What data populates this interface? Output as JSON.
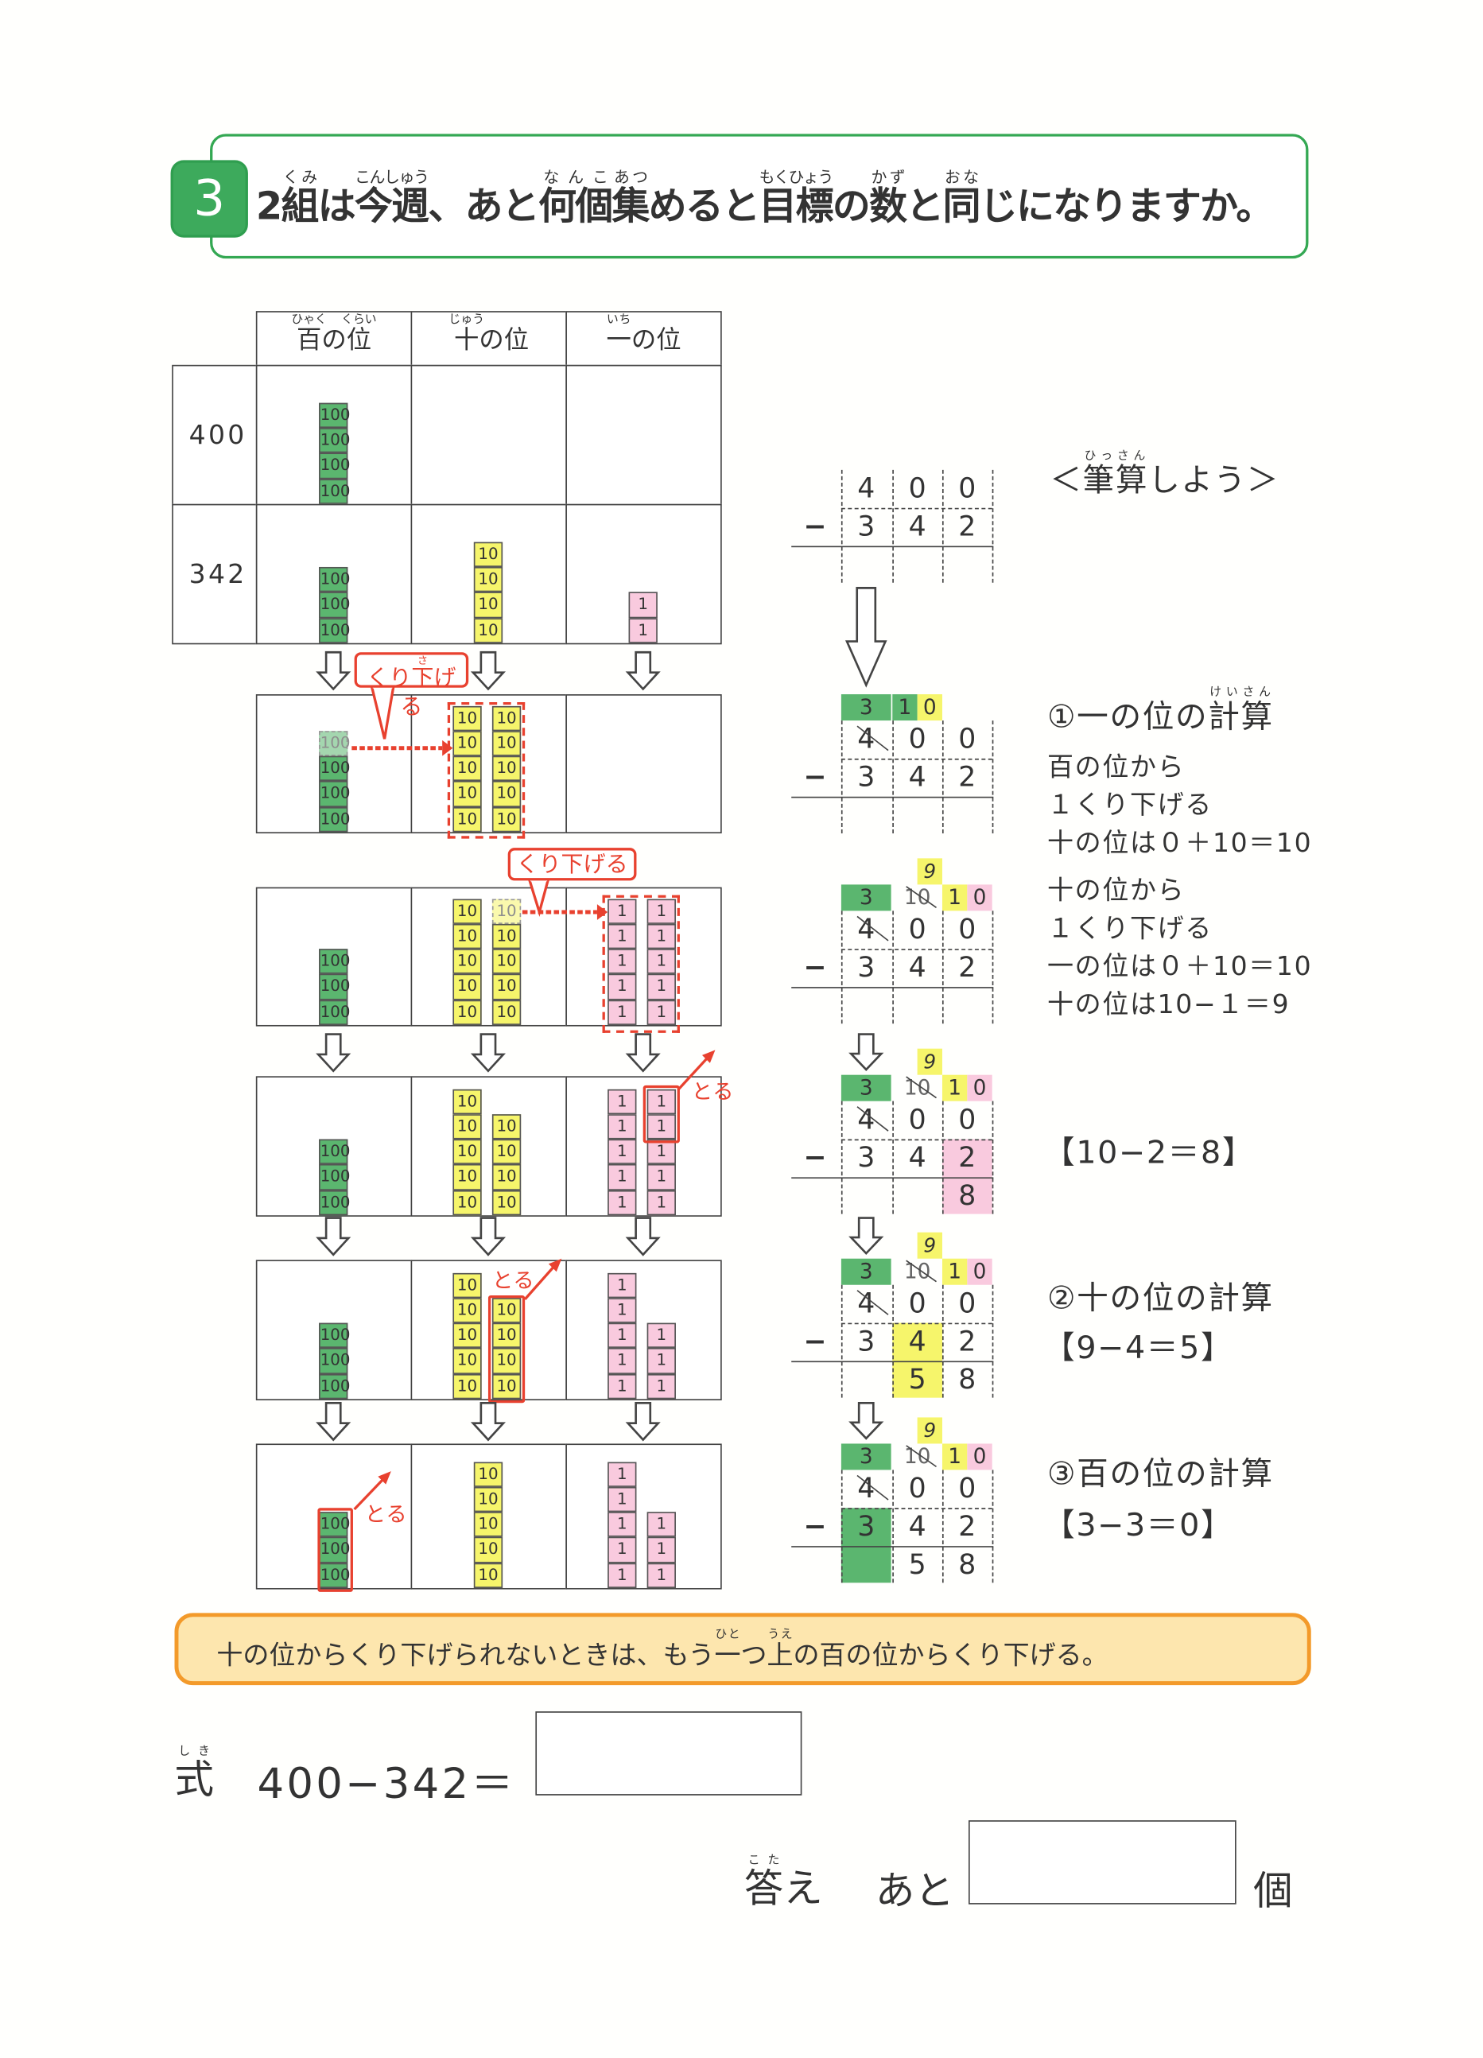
{
  "question": {
    "number": "3",
    "text": [
      {
        "t": "2"
      },
      {
        "t": "組",
        "r": "くみ"
      },
      {
        "t": "は"
      },
      {
        "t": "今週",
        "r": "こんしゅう"
      },
      {
        "t": "、あと"
      },
      {
        "t": "何個",
        "r": "なんこ"
      },
      {
        "t": "集",
        "r": "あつ"
      },
      {
        "t": "めると"
      },
      {
        "t": "目標",
        "r": "もくひょう"
      },
      {
        "t": "の"
      },
      {
        "t": "数",
        "r": "かず"
      },
      {
        "t": "と"
      },
      {
        "t": "同",
        "r": "おな"
      },
      {
        "t": "じになりますか。"
      }
    ]
  },
  "place_table": {
    "headers": [
      [
        {
          "t": "百",
          "r": "ひゃく"
        },
        {
          "t": "の"
        },
        {
          "t": "位",
          "r": "くらい"
        }
      ],
      [
        {
          "t": "十",
          "r": "じゅう"
        },
        {
          "t": "の位"
        }
      ],
      [
        {
          "t": "一",
          "r": "いち"
        },
        {
          "t": "の位"
        }
      ]
    ],
    "row_labels": [
      "400",
      "342"
    ]
  },
  "block_labels": {
    "h": "100",
    "t": "10",
    "o": "1"
  },
  "block_boxes": [
    {
      "name": "row-400",
      "h": [
        4
      ],
      "t": [],
      "o": []
    },
    {
      "name": "row-342",
      "h": [
        3
      ],
      "t": [
        4
      ],
      "o": [
        2
      ]
    },
    {
      "name": "step-1",
      "h": [
        4
      ],
      "h_faded_top": true,
      "t": [
        5,
        5
      ],
      "o": []
    },
    {
      "name": "step-2",
      "h": [
        3
      ],
      "t": [
        5,
        5
      ],
      "t_faded_top": true,
      "o": [
        5,
        5
      ]
    },
    {
      "name": "step-3",
      "h": [
        3
      ],
      "t": [
        5,
        4
      ],
      "o": [
        5,
        5
      ]
    },
    {
      "name": "step-4",
      "h": [
        3
      ],
      "t": [
        5,
        4
      ],
      "o": [
        5,
        3
      ]
    },
    {
      "name": "step-5",
      "h": [
        3
      ],
      "t": [
        5
      ],
      "o": [
        5,
        3
      ]
    }
  ],
  "callouts": {
    "borrow_1": [
      {
        "t": "くり"
      },
      {
        "t": "下",
        "r": "さ"
      },
      {
        "t": "げる"
      }
    ],
    "borrow_2": "くり下げる",
    "take": "とる"
  },
  "computations": [
    {
      "minuend": [
        "4",
        "0",
        "0"
      ],
      "subtrahend": [
        "3",
        "4",
        "2"
      ],
      "answer": [
        "",
        "",
        ""
      ],
      "minus": "−"
    },
    {
      "carry": [
        {
          "text": "3",
          "col": 0,
          "bg": "green"
        },
        {
          "text": "1",
          "col": 1,
          "half": "left",
          "bg": "green"
        },
        {
          "text": "0",
          "col": 1,
          "half": "right",
          "bg": "yellow"
        }
      ],
      "strike_h": true,
      "minuend": [
        "4",
        "0",
        "0"
      ],
      "subtrahend": [
        "3",
        "4",
        "2"
      ],
      "answer": [
        "",
        "",
        ""
      ],
      "minus": "−"
    },
    {
      "nine": "9",
      "carry": [
        {
          "text": "3",
          "col": 0,
          "bg": "green"
        },
        {
          "text": "10",
          "col": 1,
          "strike": true
        },
        {
          "text": "1",
          "col": 2,
          "half": "left",
          "bg": "yellow"
        },
        {
          "text": "0",
          "col": 2,
          "half": "right",
          "bg": "pink"
        }
      ],
      "strike_h": true,
      "minuend": [
        "4",
        "0",
        "0"
      ],
      "subtrahend": [
        "3",
        "4",
        "2"
      ],
      "answer": [
        "",
        "",
        ""
      ],
      "minus": "−"
    },
    {
      "nine": "9",
      "carry": [
        {
          "text": "3",
          "col": 0,
          "bg": "green"
        },
        {
          "text": "10",
          "col": 1,
          "strike": true
        },
        {
          "text": "1",
          "col": 2,
          "half": "left",
          "bg": "yellow"
        },
        {
          "text": "0",
          "col": 2,
          "half": "right",
          "bg": "pink"
        }
      ],
      "strike_h": true,
      "minuend": [
        "4",
        "0",
        "0"
      ],
      "subtrahend": [
        "3",
        "4",
        "2"
      ],
      "answer": [
        "",
        "",
        "8"
      ],
      "hl": {
        "col": 2,
        "bg": "pink"
      },
      "minus": "−"
    },
    {
      "nine": "9",
      "carry": [
        {
          "text": "3",
          "col": 0,
          "bg": "green"
        },
        {
          "text": "10",
          "col": 1,
          "strike": true
        },
        {
          "text": "1",
          "col": 2,
          "half": "left",
          "bg": "yellow"
        },
        {
          "text": "0",
          "col": 2,
          "half": "right",
          "bg": "pink"
        }
      ],
      "strike_h": true,
      "minuend": [
        "4",
        "0",
        "0"
      ],
      "subtrahend": [
        "3",
        "4",
        "2"
      ],
      "answer": [
        "",
        "5",
        "8"
      ],
      "hl": {
        "col": 1,
        "bg": "yellow"
      },
      "minus": "−"
    },
    {
      "nine": "9",
      "carry": [
        {
          "text": "3",
          "col": 0,
          "bg": "green"
        },
        {
          "text": "10",
          "col": 1,
          "strike": true
        },
        {
          "text": "1",
          "col": 2,
          "half": "left",
          "bg": "yellow"
        },
        {
          "text": "0",
          "col": 2,
          "half": "right",
          "bg": "pink"
        }
      ],
      "strike_h": true,
      "minuend": [
        "4",
        "0",
        "0"
      ],
      "subtrahend": [
        "3",
        "4",
        "2"
      ],
      "answer": [
        "",
        "5",
        "8"
      ],
      "hl": {
        "col": 0,
        "bg": "green"
      },
      "minus": "−"
    }
  ],
  "explanation": {
    "title": [
      {
        "t": "＜"
      },
      {
        "t": "筆算",
        "r": "ひっさん"
      },
      {
        "t": "しよう＞"
      }
    ],
    "step1_title": [
      {
        "t": "①一の位の"
      },
      {
        "t": "計算",
        "r": "けいさん"
      }
    ],
    "step1_lines": [
      "百の位から",
      "１くり下げる",
      "十の位は０＋10＝10",
      "十の位から",
      "１くり下げる",
      "一の位は０＋10＝10",
      "十の位は10−１＝9"
    ],
    "ones_eq": "【10−2＝8】",
    "step2_title": "②十の位の計算",
    "step2_eq": "【9−4＝5】",
    "step3_title": "③百の位の計算",
    "step3_eq": "【3−3＝0】"
  },
  "tip": [
    {
      "t": "十の位からくり下げられないときは、もう"
    },
    {
      "t": "一",
      "r": "ひと"
    },
    {
      "t": "つ"
    },
    {
      "t": "上",
      "r": "うえ"
    },
    {
      "t": "の百の位からくり下げる。"
    }
  ],
  "formula": {
    "label": {
      "t": "式",
      "r": "しき"
    },
    "expression": "400−342＝",
    "value": ""
  },
  "answer": {
    "label": {
      "t": "答",
      "r": "こた"
    },
    "label_rest": "え",
    "prefix": "あと",
    "value": "",
    "unit": "個"
  },
  "colors": {
    "green": "#5bb66f",
    "yellow": "#f6f56b",
    "pink": "#f9cade",
    "red": "#e8412f",
    "orange": "#f39a2a",
    "tip_fill": "#fde6ae"
  }
}
